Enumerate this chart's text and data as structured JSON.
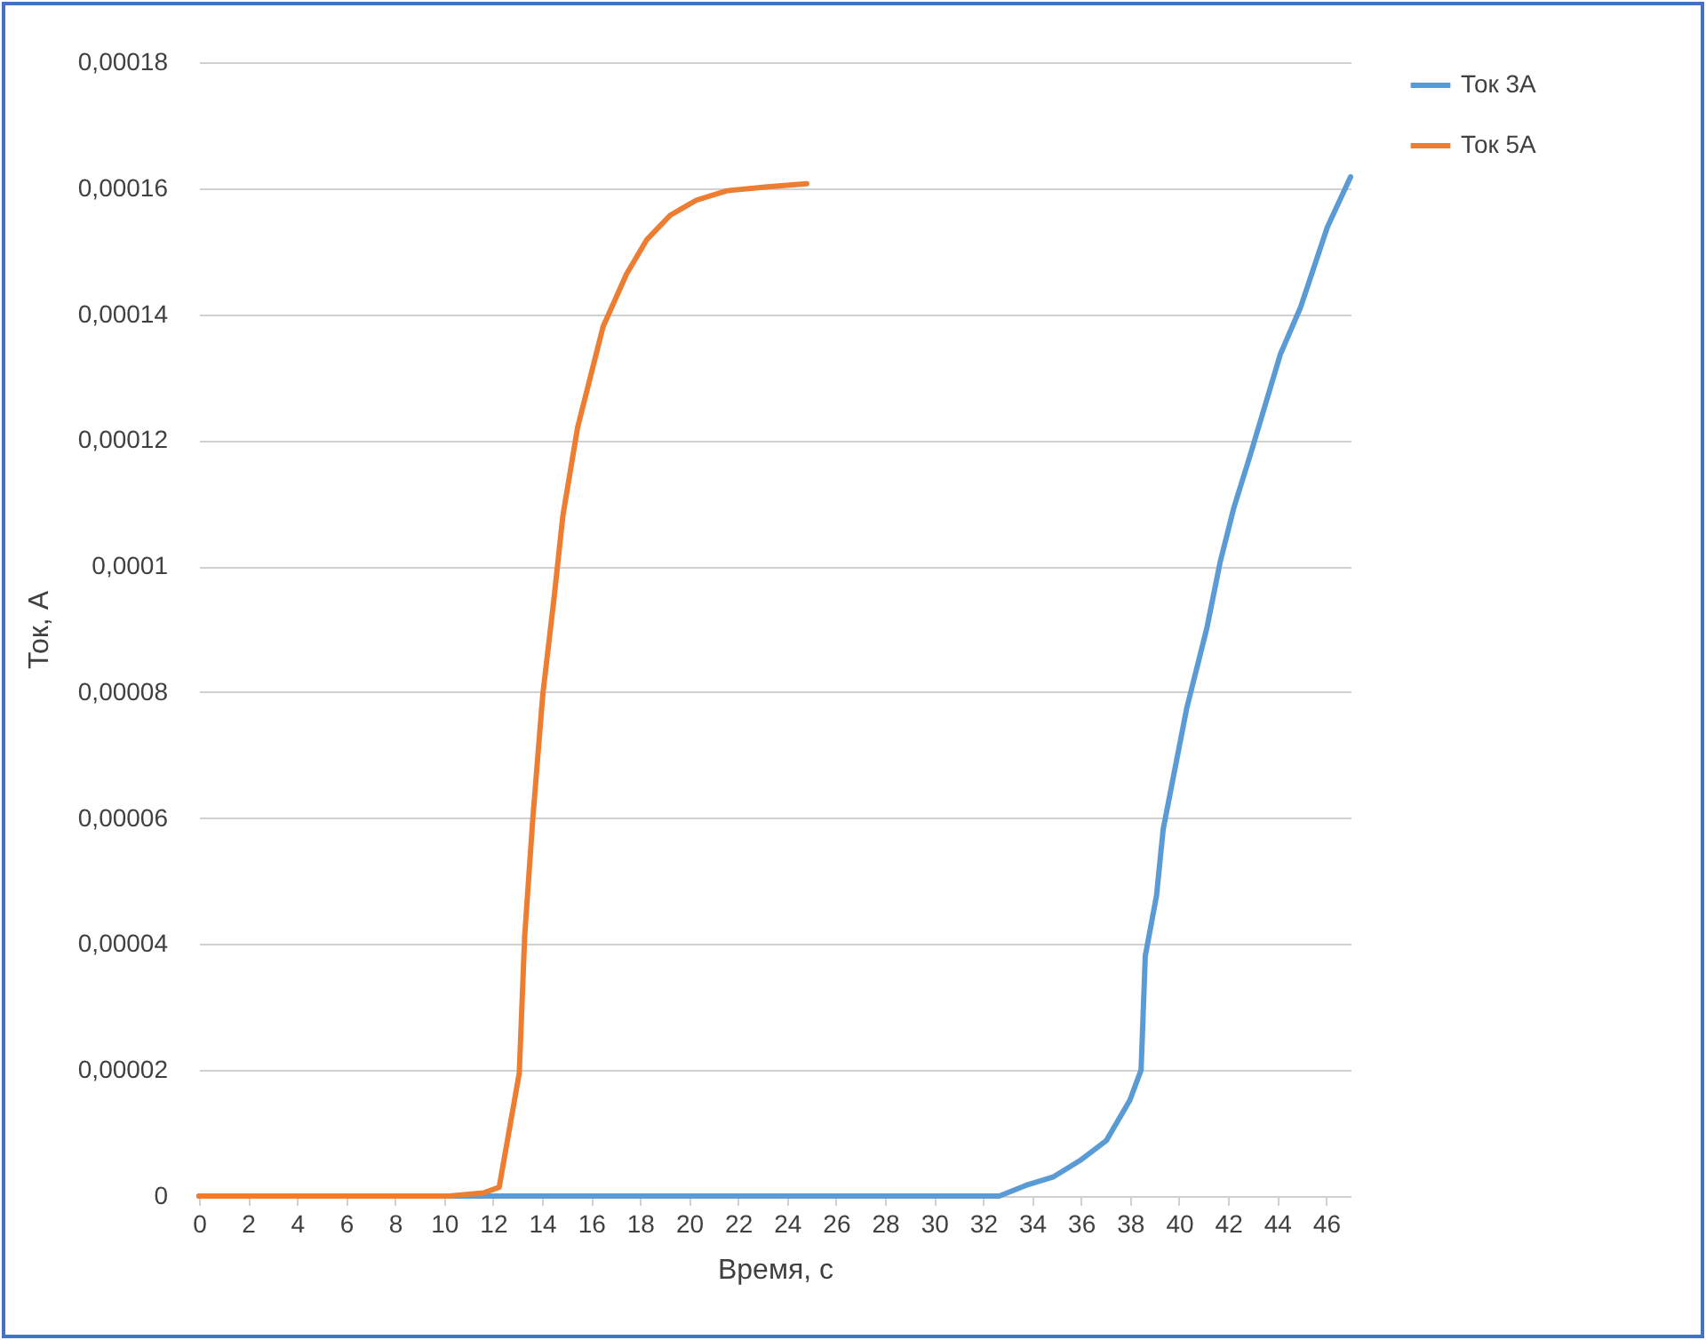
{
  "chart_data": {
    "type": "line",
    "xlabel": "Время, с",
    "ylabel": "Ток, А",
    "xlim": [
      0,
      47
    ],
    "xticks": [
      0,
      2,
      4,
      6,
      8,
      10,
      12,
      14,
      16,
      18,
      20,
      22,
      24,
      26,
      28,
      30,
      32,
      34,
      36,
      38,
      40,
      42,
      44,
      46
    ],
    "ylim": [
      0,
      0.00018
    ],
    "yticks": [
      0,
      {
        "value": 2e-05,
        "label": "0,00002"
      },
      {
        "value": 4e-05,
        "label": "0,00004"
      },
      {
        "value": 6e-05,
        "label": "0,00006"
      },
      {
        "value": 8e-05,
        "label": "0,00008"
      },
      {
        "value": 0.0001,
        "label": "0,0001"
      },
      {
        "value": 0.00012,
        "label": "0,00012"
      },
      {
        "value": 0.00014,
        "label": "0,00014"
      },
      {
        "value": 0.00016,
        "label": "0,00016"
      },
      {
        "value": 0.00018,
        "label": "0,00018"
      }
    ],
    "grid": "y",
    "legend": "right",
    "line_style": "solid",
    "series": [
      {
        "name": "Ток 3А",
        "color": "#5b9bd5",
        "x": [
          0,
          10,
          20,
          30.8,
          32.66,
          33.75,
          34.85,
          35.94,
          37.03,
          37.99,
          38.45,
          38.62,
          39.08,
          39.35,
          40.31,
          41.13,
          41.68,
          42.23,
          42.91,
          44.14,
          44.96,
          46.05,
          47
        ],
        "values": [
          0,
          0,
          0,
          0,
          0,
          1.7e-06,
          3e-06,
          5.6e-06,
          8.8e-06,
          1.52e-05,
          2e-05,
          3.81e-05,
          4.77e-05,
          5.82e-05,
          7.74e-05,
          9.01e-05,
          0.0001007,
          0.0001092,
          0.0001177,
          0.0001337,
          0.0001411,
          0.0001538,
          0.0001618
        ]
      },
      {
        "name": "Ток 5А",
        "color": "#ed7d31",
        "x": [
          0,
          5,
          10.2,
          11.6,
          12.25,
          13.07,
          13.29,
          13.62,
          14.03,
          14.5,
          14.85,
          15.45,
          16.49,
          17.45,
          18.27,
          19.23,
          20.3,
          21.55,
          23.2,
          24.8
        ],
        "values": [
          0,
          0,
          0,
          5e-07,
          1.4e-06,
          1.95e-05,
          4.12e-05,
          5.98e-05,
          7.96e-05,
          9.53e-05,
          0.000108,
          0.000122,
          0.000138,
          0.0001464,
          0.0001518,
          0.0001557,
          0.0001581,
          0.0001596,
          0.0001602,
          0.0001607
        ]
      }
    ]
  }
}
